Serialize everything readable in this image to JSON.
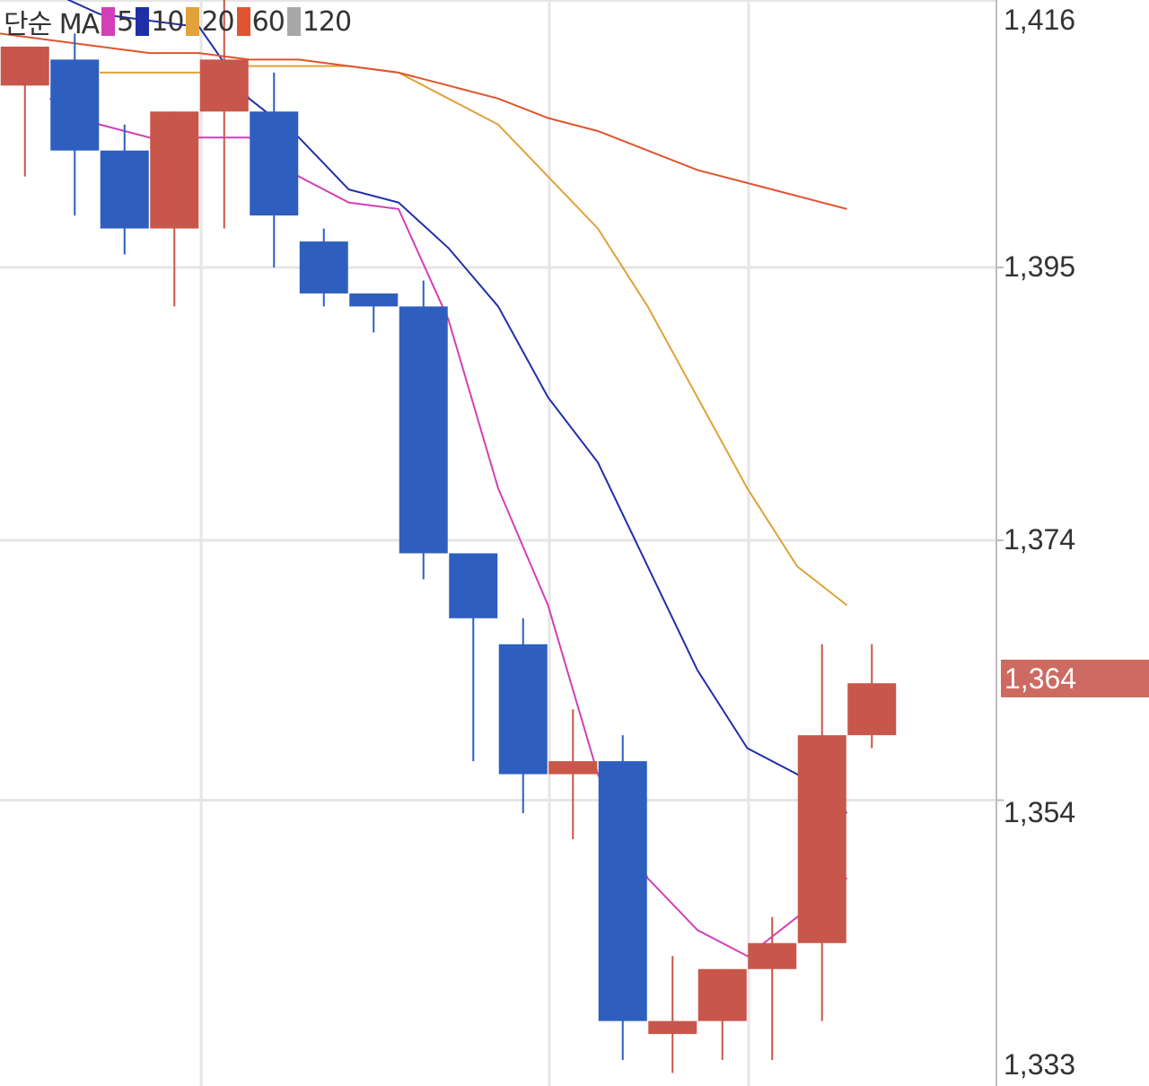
{
  "legend": {
    "title": "단순 MA",
    "items": [
      {
        "label": "5",
        "color": "#d23fb8"
      },
      {
        "label": "10",
        "color": "#1f2fa8"
      },
      {
        "label": "20",
        "color": "#e0a23a"
      },
      {
        "label": "60",
        "color": "#e0542f"
      },
      {
        "label": "120",
        "color": "#a8a8a8"
      }
    ]
  },
  "y_axis": {
    "ticks": [
      {
        "value": 1416,
        "label": "1,416"
      },
      {
        "value": 1395,
        "label": "1,395"
      },
      {
        "value": 1374,
        "label": "1,374"
      },
      {
        "value": 1354,
        "label": "1,354"
      },
      {
        "value": 1333,
        "label": "1,333"
      }
    ],
    "current_price_label": "1,364",
    "current_price": 1364
  },
  "colors": {
    "up": "#c8564a",
    "down": "#2e5fbf",
    "grid": "#e6e6e6",
    "axis_line": "#bdbdbd",
    "current_tag": "#cd6b63"
  },
  "chart_data": {
    "type": "candlestick",
    "ylim": [
      1333,
      1416
    ],
    "grid": true,
    "legend_placement": "top-left",
    "candles": [
      {
        "open": 1409.0,
        "close": 1412.0,
        "high": 1412.0,
        "low": 1402.0
      },
      {
        "open": 1411.0,
        "close": 1404.0,
        "high": 1413.0,
        "low": 1399.0
      },
      {
        "open": 1404.0,
        "close": 1398.0,
        "high": 1406.0,
        "low": 1396.0
      },
      {
        "open": 1398.0,
        "close": 1407.0,
        "high": 1407.0,
        "low": 1392.0
      },
      {
        "open": 1407.0,
        "close": 1411.0,
        "high": 1417.0,
        "low": 1398.0
      },
      {
        "open": 1407.0,
        "close": 1399.0,
        "high": 1410.0,
        "low": 1395.0
      },
      {
        "open": 1397.0,
        "close": 1393.0,
        "high": 1398.0,
        "low": 1392.0
      },
      {
        "open": 1393.0,
        "close": 1392.0,
        "high": 1393.0,
        "low": 1390.0
      },
      {
        "open": 1392.0,
        "close": 1373.0,
        "high": 1394.0,
        "low": 1371.0
      },
      {
        "open": 1373.0,
        "close": 1368.0,
        "high": 1373.0,
        "low": 1357.0
      },
      {
        "open": 1366.0,
        "close": 1356.0,
        "high": 1368.0,
        "low": 1353.0
      },
      {
        "open": 1356.0,
        "close": 1357.0,
        "high": 1361.0,
        "low": 1351.0
      },
      {
        "open": 1357.0,
        "close": 1337.0,
        "high": 1359.0,
        "low": 1334.0
      },
      {
        "open": 1336.0,
        "close": 1337.0,
        "high": 1342.0,
        "low": 1333.0
      },
      {
        "open": 1337.0,
        "close": 1341.0,
        "high": 1341.0,
        "low": 1334.0
      },
      {
        "open": 1341.0,
        "close": 1343.0,
        "high": 1345.0,
        "low": 1334.0
      },
      {
        "open": 1343.0,
        "close": 1359.0,
        "high": 1366.0,
        "low": 1337.0
      },
      {
        "open": 1359.0,
        "close": 1363.0,
        "high": 1366.0,
        "low": 1358.0
      }
    ],
    "ma": [
      {
        "name": "5",
        "color": "#d23fb8",
        "points": [
          [
            0.5,
            1408
          ],
          [
            1.5,
            1406
          ],
          [
            2.5,
            1405
          ],
          [
            3.5,
            1405
          ],
          [
            4.5,
            1405
          ],
          [
            5.5,
            1402
          ],
          [
            6.5,
            1400
          ],
          [
            7.5,
            1399.5
          ],
          [
            8.5,
            1391
          ],
          [
            9.5,
            1378
          ],
          [
            10.5,
            1369
          ],
          [
            11.5,
            1356
          ],
          [
            12.5,
            1348
          ],
          [
            13.5,
            1344
          ],
          [
            14.5,
            1342
          ],
          [
            15.5,
            1345
          ],
          [
            16.5,
            1348
          ]
        ]
      },
      {
        "name": "10",
        "color": "#1f2fa8",
        "points": [
          [
            -0.5,
            1418
          ],
          [
            1.5,
            1414.5
          ],
          [
            2.5,
            1414
          ],
          [
            3.5,
            1413.5
          ],
          [
            4.5,
            1408
          ],
          [
            5.5,
            1405
          ],
          [
            6.5,
            1401
          ],
          [
            7.5,
            1400
          ],
          [
            8.5,
            1396.5
          ],
          [
            9.5,
            1392
          ],
          [
            10.5,
            1385
          ],
          [
            11.5,
            1380
          ],
          [
            12.5,
            1372
          ],
          [
            13.5,
            1364
          ],
          [
            14.5,
            1358
          ],
          [
            15.5,
            1356
          ],
          [
            16.5,
            1353
          ]
        ]
      },
      {
        "name": "20",
        "color": "#e0a23a",
        "points": [
          [
            1.5,
            1410
          ],
          [
            2.5,
            1410
          ],
          [
            3.5,
            1410
          ],
          [
            4.5,
            1410.5
          ],
          [
            5.5,
            1410.5
          ],
          [
            6.5,
            1410.5
          ],
          [
            7.5,
            1410
          ],
          [
            8.5,
            1408
          ],
          [
            9.5,
            1406
          ],
          [
            10.5,
            1402
          ],
          [
            11.5,
            1398
          ],
          [
            12.5,
            1392
          ],
          [
            13.5,
            1385
          ],
          [
            14.5,
            1378
          ],
          [
            15.5,
            1372
          ],
          [
            16.5,
            1369
          ]
        ]
      },
      {
        "name": "60",
        "color": "#e0542f",
        "points": [
          [
            -0.5,
            1413
          ],
          [
            1.5,
            1412
          ],
          [
            2.5,
            1411.5
          ],
          [
            3.5,
            1411.5
          ],
          [
            4.5,
            1411
          ],
          [
            5.5,
            1411
          ],
          [
            6.5,
            1410.5
          ],
          [
            7.5,
            1410
          ],
          [
            8.5,
            1409
          ],
          [
            9.5,
            1408
          ],
          [
            10.5,
            1406.5
          ],
          [
            11.5,
            1405.5
          ],
          [
            12.5,
            1404
          ],
          [
            13.5,
            1402.5
          ],
          [
            14.5,
            1401.5
          ],
          [
            15.5,
            1400.5
          ],
          [
            16.5,
            1399.5
          ]
        ]
      }
    ]
  }
}
